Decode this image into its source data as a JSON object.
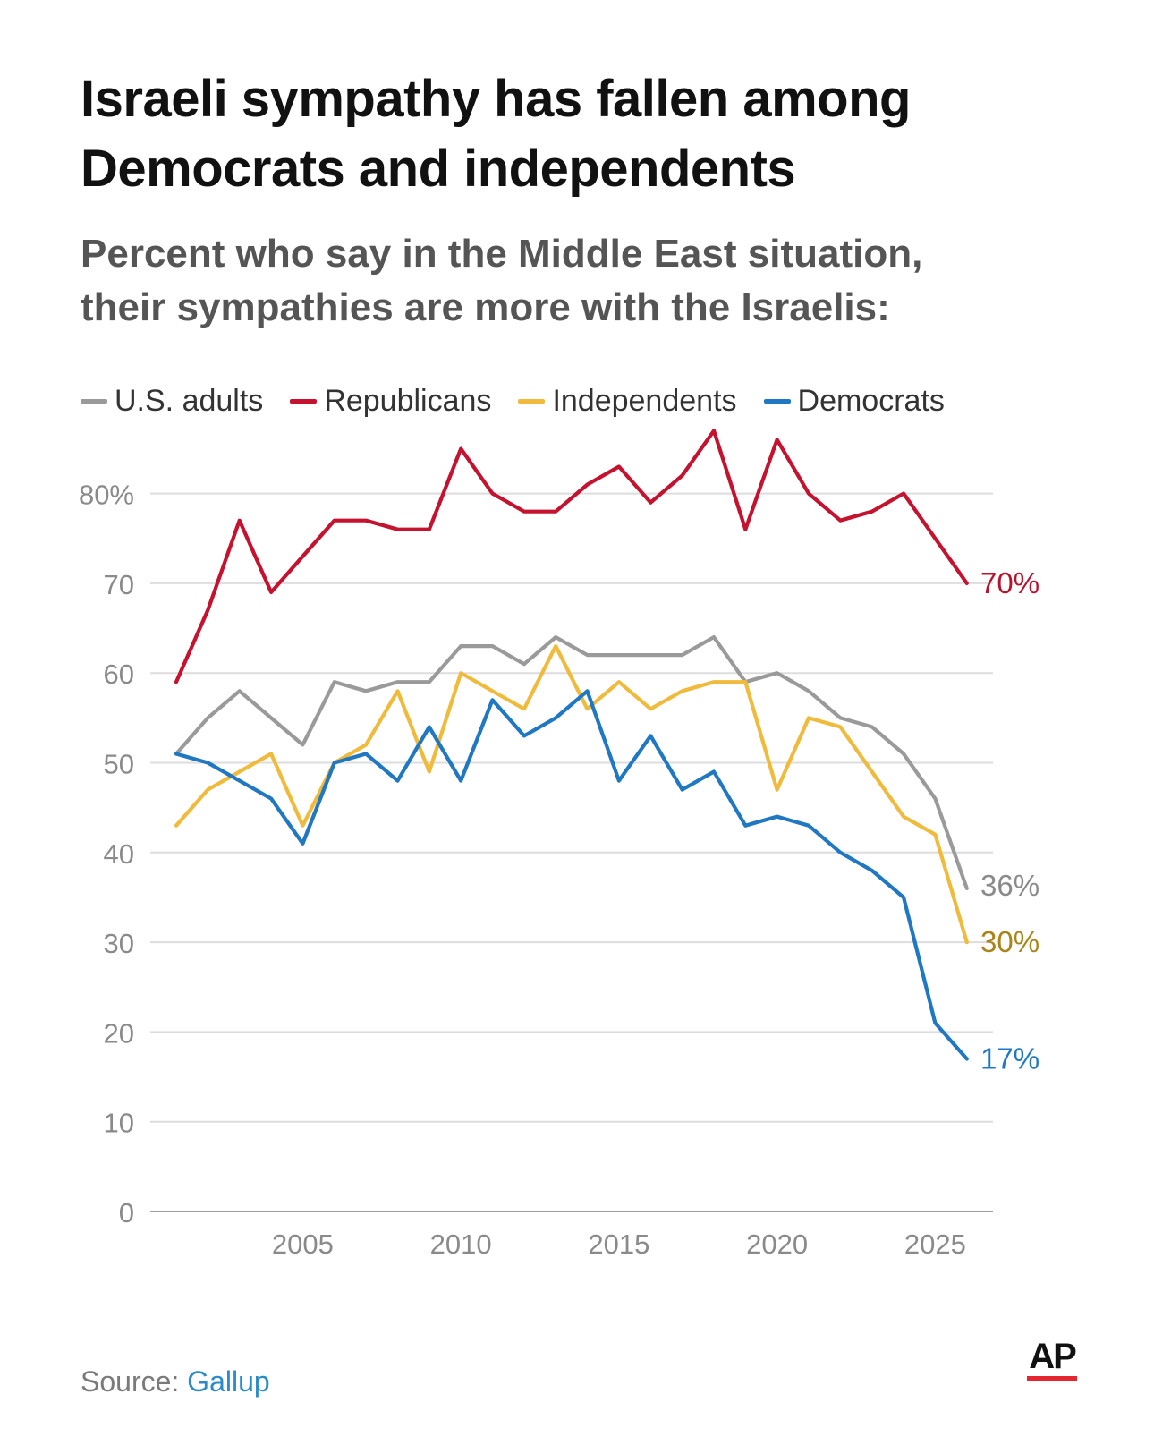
{
  "title": {
    "line1": "Israeli sympathy has fallen among",
    "line2": "Democrats and independents"
  },
  "subtitle": {
    "line1": "Percent who say in the Middle East situation,",
    "line2": "their sympathies are more with the Israelis:"
  },
  "source": {
    "label": "Source:",
    "name": "Gallup"
  },
  "brand": {
    "logo_text": "AP",
    "accent": "#e3262f"
  },
  "chart_data": {
    "type": "line",
    "ylim": [
      0,
      87
    ],
    "yticks": [
      0,
      10,
      20,
      30,
      40,
      50,
      60,
      70,
      80
    ],
    "ytick_labels": [
      "0",
      "10",
      "20",
      "30",
      "40",
      "50",
      "60",
      "70",
      "80%"
    ],
    "xlim": [
      2001,
      2026
    ],
    "xticks": [
      2005,
      2010,
      2015,
      2020,
      2025
    ],
    "xtick_labels": [
      "2005",
      "2010",
      "2015",
      "2020",
      "2025"
    ],
    "grid": true,
    "legend_position": "top-left",
    "x": [
      2001,
      2002,
      2003,
      2004,
      2005,
      2006,
      2007,
      2008,
      2009,
      2010,
      2011,
      2012,
      2013,
      2014,
      2015,
      2016,
      2017,
      2018,
      2019,
      2020,
      2021,
      2022,
      2023,
      2024,
      2025,
      2026
    ],
    "series": [
      {
        "key": "us_adults",
        "name": "U.S. adults",
        "color": "#9a9a9a",
        "label_color": "#8a8a8a",
        "end_label": "36%",
        "values": [
          51,
          55,
          58,
          55,
          52,
          59,
          58,
          59,
          59,
          63,
          63,
          61,
          64,
          62,
          62,
          62,
          62,
          64,
          59,
          60,
          58,
          55,
          54,
          51,
          46,
          36
        ]
      },
      {
        "key": "republicans",
        "name": "Republicans",
        "color": "#c4122f",
        "label_color": "#b8132e",
        "end_label": "70%",
        "values": [
          59,
          67,
          77,
          69,
          73,
          77,
          77,
          76,
          76,
          85,
          80,
          78,
          78,
          81,
          83,
          79,
          82,
          87,
          76,
          86,
          80,
          77,
          78,
          80,
          75,
          70
        ]
      },
      {
        "key": "independents",
        "name": "Independents",
        "color": "#f0bb3c",
        "label_color": "#a98417",
        "end_label": "30%",
        "values": [
          43,
          47,
          49,
          51,
          43,
          50,
          52,
          58,
          49,
          60,
          58,
          56,
          63,
          56,
          59,
          56,
          58,
          59,
          59,
          47,
          55,
          54,
          49,
          44,
          42,
          30
        ]
      },
      {
        "key": "democrats",
        "name": "Democrats",
        "color": "#1f78c1",
        "label_color": "#1f78c1",
        "end_label": "17%",
        "values": [
          51,
          50,
          48,
          46,
          41,
          50,
          51,
          48,
          54,
          48,
          57,
          53,
          55,
          58,
          48,
          53,
          47,
          49,
          43,
          44,
          43,
          40,
          38,
          35,
          21,
          17
        ]
      }
    ]
  }
}
